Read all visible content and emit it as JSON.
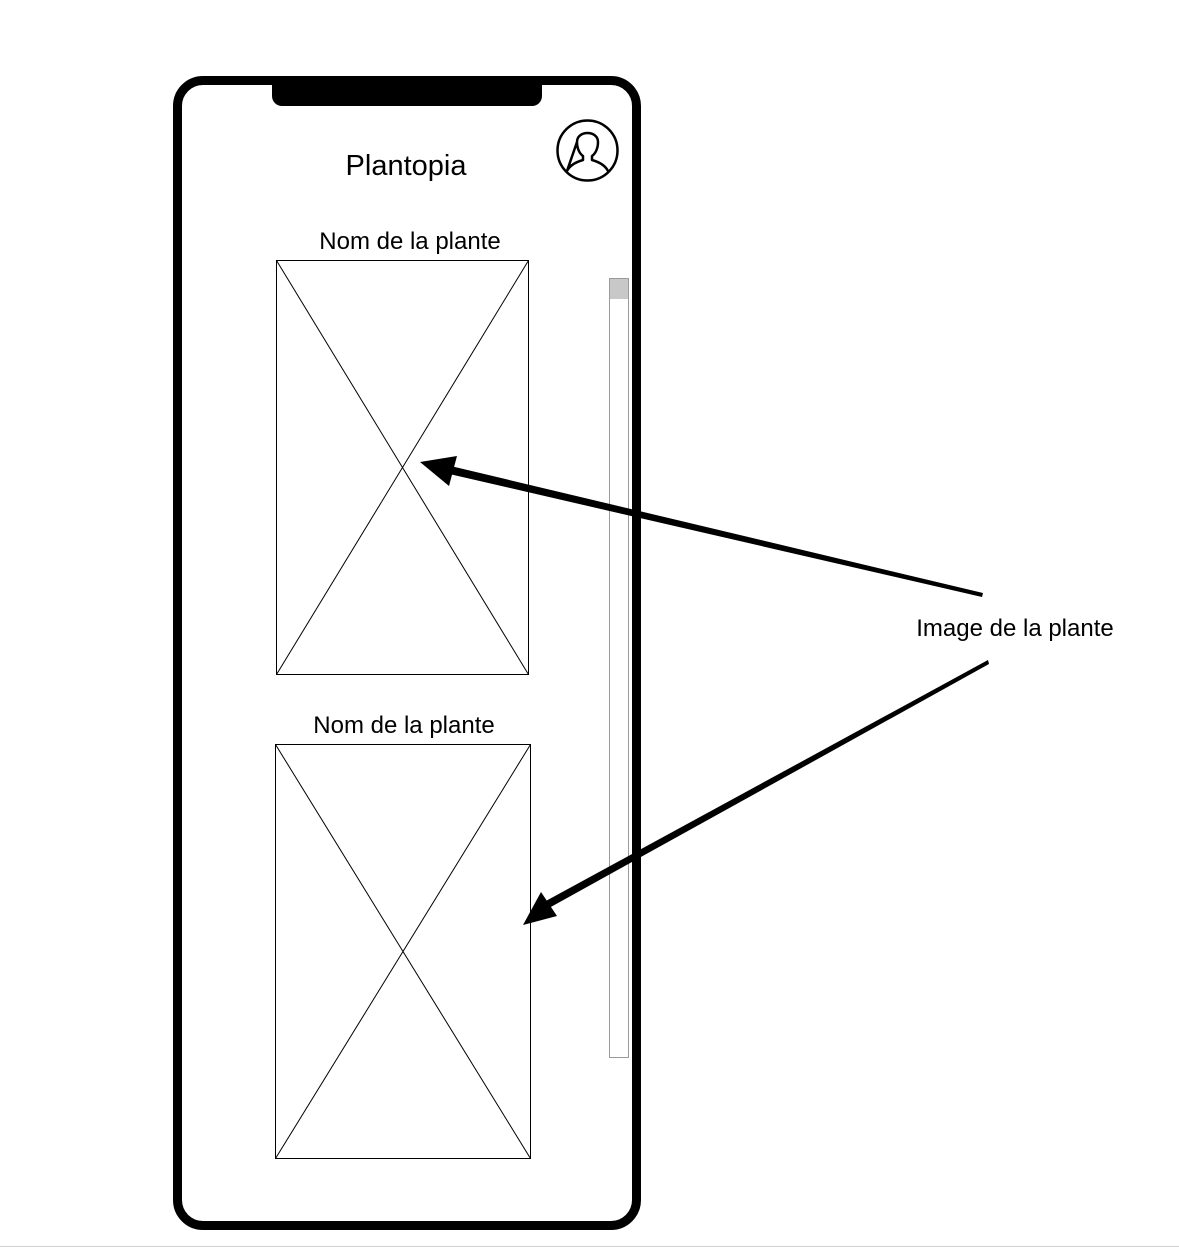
{
  "app": {
    "title": "Plantopia"
  },
  "header": {
    "avatar_icon": "user-avatar-icon"
  },
  "plants": [
    {
      "name": "Nom de la plante",
      "image_icon": "image-placeholder-icon"
    },
    {
      "name": "Nom de la plante",
      "image_icon": "image-placeholder-icon"
    }
  ],
  "annotation": {
    "label": "Image de la plante"
  },
  "colors": {
    "stroke": "#000000",
    "background": "#ffffff",
    "scrollbar_thumb": "#c8c8c8",
    "scrollbar_border": "#9a9a9a"
  },
  "scrollbar": {
    "position_fraction": 0
  }
}
